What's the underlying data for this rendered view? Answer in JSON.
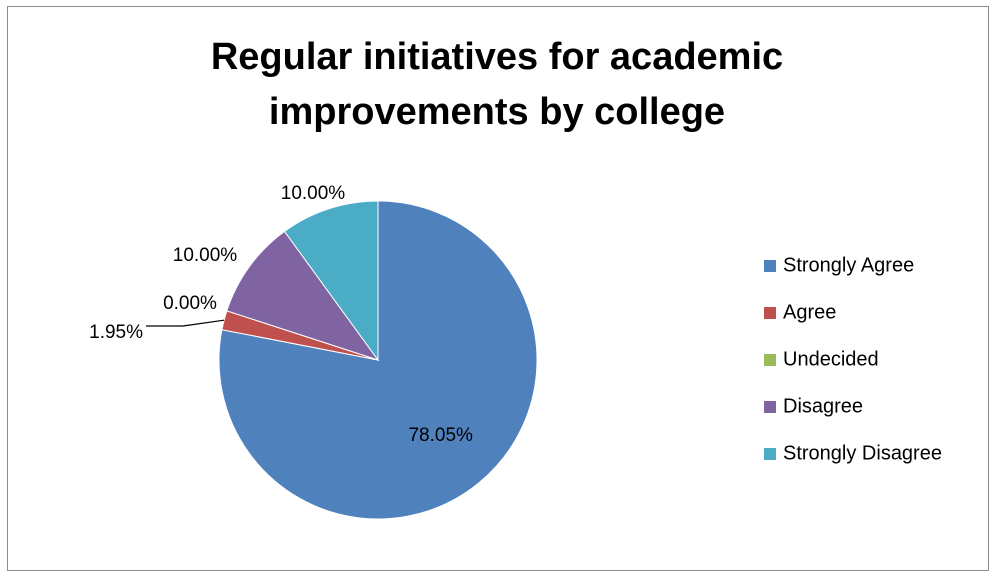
{
  "chart_data": {
    "type": "pie",
    "title_lines": [
      "Regular initiatives for academic",
      "improvements by college"
    ],
    "categories": [
      "Strongly Agree",
      "Agree",
      "Undecided",
      "Disagree",
      "Strongly Disagree"
    ],
    "values": [
      78.05,
      1.95,
      0.0,
      10.0,
      10.0
    ],
    "labels": [
      "78.05%",
      "1.95%",
      "0.00%",
      "10.00%",
      "10.00%"
    ],
    "colors": [
      "#4F81BD",
      "#C0504D",
      "#9BBB59",
      "#8064A2",
      "#4BACC6"
    ],
    "legend_position": "right",
    "start_angle": "12 o'clock",
    "direction": "clockwise"
  }
}
